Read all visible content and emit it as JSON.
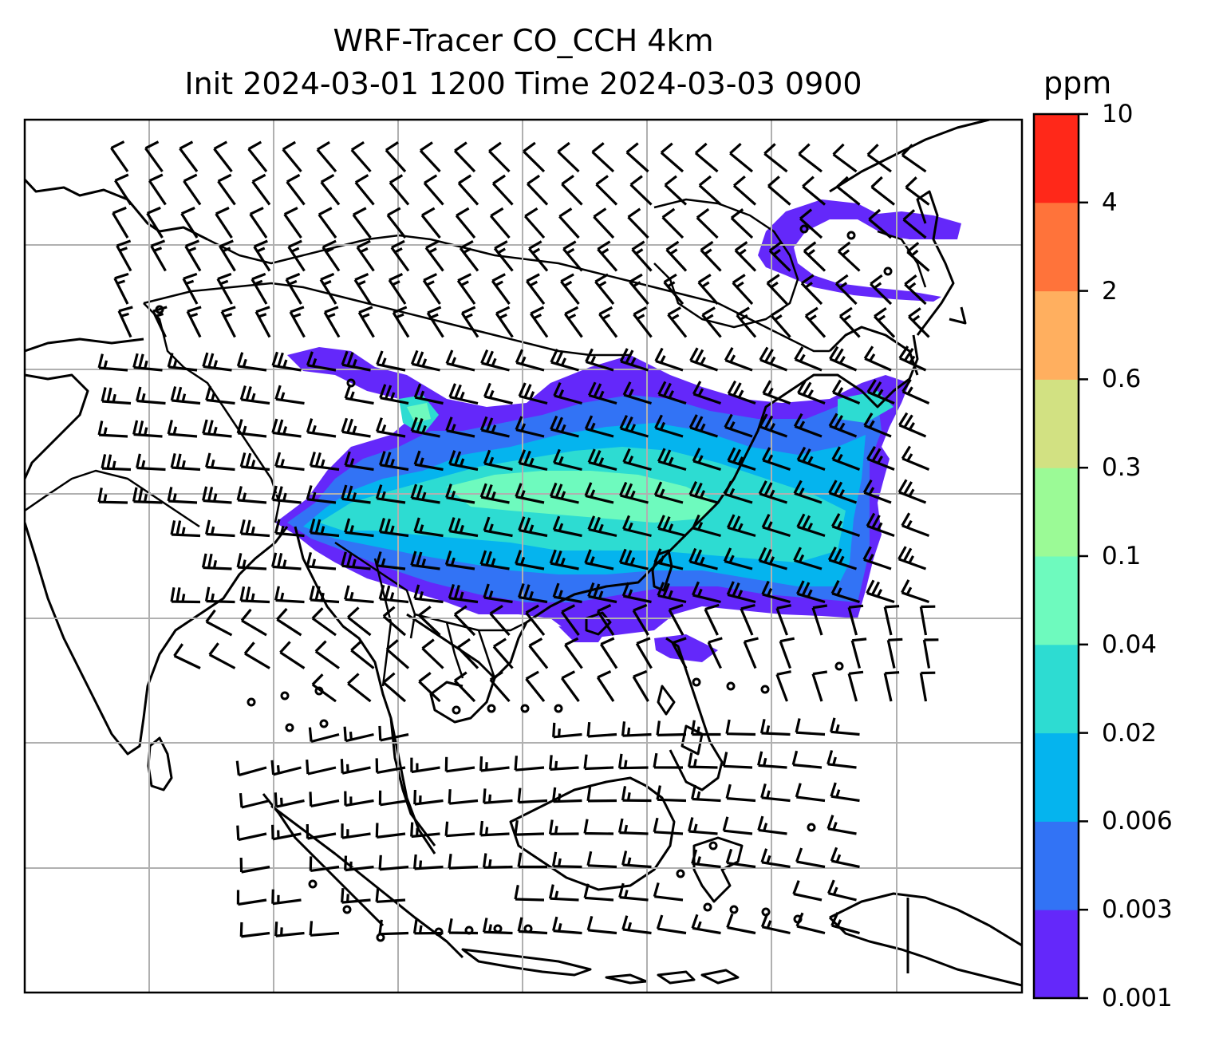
{
  "title_line1": "WRF-Tracer CO_CCH 4km",
  "title_line2": "Init 2024-03-01 1200 Time 2024-03-03 0900",
  "colorbar": {
    "unit": "ppm",
    "ticks": [
      "0.001",
      "0.003",
      "0.006",
      "0.02",
      "0.04",
      "0.1",
      "0.3",
      "0.6",
      "2",
      "4",
      "10"
    ],
    "colors": [
      "#6428FA",
      "#3273F5",
      "#05B4EE",
      "#2DDCD2",
      "#6EFABE",
      "#9BFA96",
      "#D2E182",
      "#FFAF5F",
      "#FF733A",
      "#FF2819"
    ]
  },
  "map": {
    "region": "Southeast Asia and East Asia",
    "overlay": "wind barbs",
    "gridlines": true
  }
}
